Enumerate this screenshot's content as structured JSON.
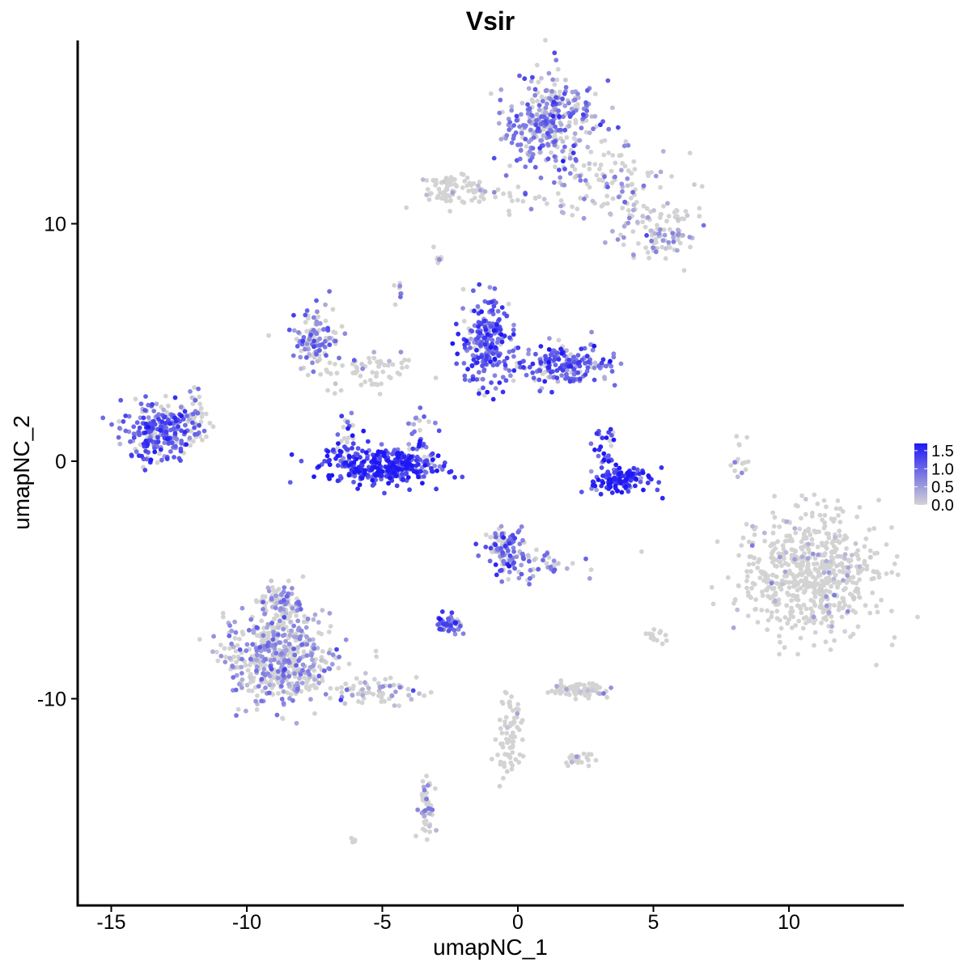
{
  "chart_data": {
    "type": "scatter",
    "title": "Vsir",
    "xlabel": "umapNC_1",
    "ylabel": "umapNC_2",
    "xlim": [
      -16.5,
      14.5
    ],
    "ylim": [
      -18.5,
      18.5
    ],
    "x_ticks": [
      -15,
      -10,
      -5,
      0,
      5,
      10
    ],
    "y_ticks": [
      -10,
      0,
      10
    ],
    "x_tick_labels": [
      "-15",
      "-10",
      "-5",
      "0",
      "5",
      "10"
    ],
    "y_tick_labels": [
      "-10",
      "0",
      "10"
    ],
    "color_scale": {
      "low": "#d3d3d3",
      "high": "#1f18f5",
      "range": [
        0,
        1.7
      ],
      "ticks": [
        0.0,
        0.5,
        1.0,
        1.5
      ],
      "tick_labels": [
        "0.0",
        "0.5",
        "1.0",
        "1.5"
      ],
      "placement": "right"
    },
    "clusters": [
      {
        "x": 1.2,
        "y": 14.3,
        "sx": 0.9,
        "sy": 0.9,
        "n": 330,
        "expr": 0.7,
        "hi": 0.55
      },
      {
        "x": 3.2,
        "y": 11.8,
        "sx": 1.3,
        "sy": 0.8,
        "n": 110,
        "expr": 0.4,
        "hi": 0.3
      },
      {
        "x": 5.2,
        "y": 9.7,
        "sx": 0.7,
        "sy": 0.6,
        "n": 110,
        "expr": 0.45,
        "hi": 0.3
      },
      {
        "x": -2.5,
        "y": 11.4,
        "sx": 0.5,
        "sy": 0.4,
        "n": 70,
        "expr": 0.08,
        "hi": 0.05
      },
      {
        "x": -0.5,
        "y": 11.1,
        "sx": 1.3,
        "sy": 0.3,
        "n": 35,
        "expr": 0.25,
        "hi": 0.1
      },
      {
        "x": -7.5,
        "y": 5.2,
        "sx": 0.45,
        "sy": 0.6,
        "n": 120,
        "expr": 0.75,
        "hi": 0.4
      },
      {
        "x": -5.2,
        "y": 3.8,
        "sx": 0.8,
        "sy": 0.4,
        "n": 60,
        "expr": 0.2,
        "hi": 0.2
      },
      {
        "x": -1.2,
        "y": 5.0,
        "sx": 0.55,
        "sy": 0.9,
        "n": 220,
        "expr": 1.05,
        "hi": 0.6
      },
      {
        "x": 1.7,
        "y": 4.1,
        "sx": 1.0,
        "sy": 0.45,
        "n": 200,
        "expr": 0.95,
        "hi": 0.6
      },
      {
        "x": -13.2,
        "y": 1.3,
        "sx": 0.7,
        "sy": 0.6,
        "n": 240,
        "expr": 0.95,
        "hi": 0.6
      },
      {
        "x": -11.9,
        "y": 1.8,
        "sx": 0.2,
        "sy": 0.6,
        "n": 30,
        "expr": 0.25,
        "hi": 0.15
      },
      {
        "x": -5.0,
        "y": -0.2,
        "sx": 1.1,
        "sy": 0.4,
        "n": 320,
        "expr": 1.4,
        "hi": 0.8
      },
      {
        "x": -3.6,
        "y": 0.9,
        "sx": 0.3,
        "sy": 0.6,
        "n": 40,
        "expr": 0.9,
        "hi": 0.5
      },
      {
        "x": -6.3,
        "y": 0.9,
        "sx": 0.2,
        "sy": 0.5,
        "n": 30,
        "expr": 1.0,
        "hi": 0.5
      },
      {
        "x": 3.8,
        "y": -0.8,
        "sx": 0.6,
        "sy": 0.25,
        "n": 110,
        "expr": 1.4,
        "hi": 0.8
      },
      {
        "x": 3.2,
        "y": 0.6,
        "sx": 0.2,
        "sy": 0.5,
        "n": 30,
        "expr": 1.1,
        "hi": 0.6
      },
      {
        "x": 10.8,
        "y": -4.8,
        "sx": 1.3,
        "sy": 1.3,
        "n": 620,
        "expr": 0.04,
        "hi": 0.12
      },
      {
        "x": -0.5,
        "y": -3.8,
        "sx": 0.4,
        "sy": 0.6,
        "n": 110,
        "expr": 0.85,
        "hi": 0.5
      },
      {
        "x": 1.0,
        "y": -4.4,
        "sx": 0.6,
        "sy": 0.4,
        "n": 35,
        "expr": 0.7,
        "hi": 0.4
      },
      {
        "x": -2.5,
        "y": -6.9,
        "sx": 0.25,
        "sy": 0.2,
        "n": 55,
        "expr": 1.0,
        "hi": 0.6
      },
      {
        "x": -8.8,
        "y": -8.3,
        "sx": 1.0,
        "sy": 0.9,
        "n": 520,
        "expr": 0.45,
        "hi": 0.45
      },
      {
        "x": -8.7,
        "y": -6.0,
        "sx": 0.4,
        "sy": 0.5,
        "n": 100,
        "expr": 0.45,
        "hi": 0.4
      },
      {
        "x": -5.3,
        "y": -9.7,
        "sx": 0.8,
        "sy": 0.3,
        "n": 70,
        "expr": 0.4,
        "hi": 0.35
      },
      {
        "x": 2.3,
        "y": -9.6,
        "sx": 0.5,
        "sy": 0.15,
        "n": 80,
        "expr": 0.15,
        "hi": 0.1
      },
      {
        "x": -0.3,
        "y": -11.8,
        "sx": 0.25,
        "sy": 0.8,
        "n": 75,
        "expr": 0.02,
        "hi": 0.02
      },
      {
        "x": 2.2,
        "y": -12.5,
        "sx": 0.3,
        "sy": 0.2,
        "n": 25,
        "expr": 0.15,
        "hi": 0.1
      },
      {
        "x": -3.4,
        "y": -14.6,
        "sx": 0.15,
        "sy": 0.6,
        "n": 45,
        "expr": 0.5,
        "hi": 0.3
      },
      {
        "x": 8.1,
        "y": 0.3,
        "sx": 0.2,
        "sy": 0.5,
        "n": 15,
        "expr": 0.05,
        "hi": 0.1
      },
      {
        "x": 5.0,
        "y": -7.4,
        "sx": 0.2,
        "sy": 0.15,
        "n": 14,
        "expr": 0.03,
        "hi": 0.05
      },
      {
        "x": -2.9,
        "y": 8.6,
        "sx": 0.1,
        "sy": 0.15,
        "n": 8,
        "expr": 0.6,
        "hi": 0.3
      },
      {
        "x": -6.1,
        "y": -16.0,
        "sx": 0.1,
        "sy": 0.05,
        "n": 6,
        "expr": 0.0,
        "hi": 0.0
      },
      {
        "x": -4.4,
        "y": 7.3,
        "sx": 0.1,
        "sy": 0.3,
        "n": 8,
        "expr": 0.7,
        "hi": 0.3
      }
    ]
  }
}
